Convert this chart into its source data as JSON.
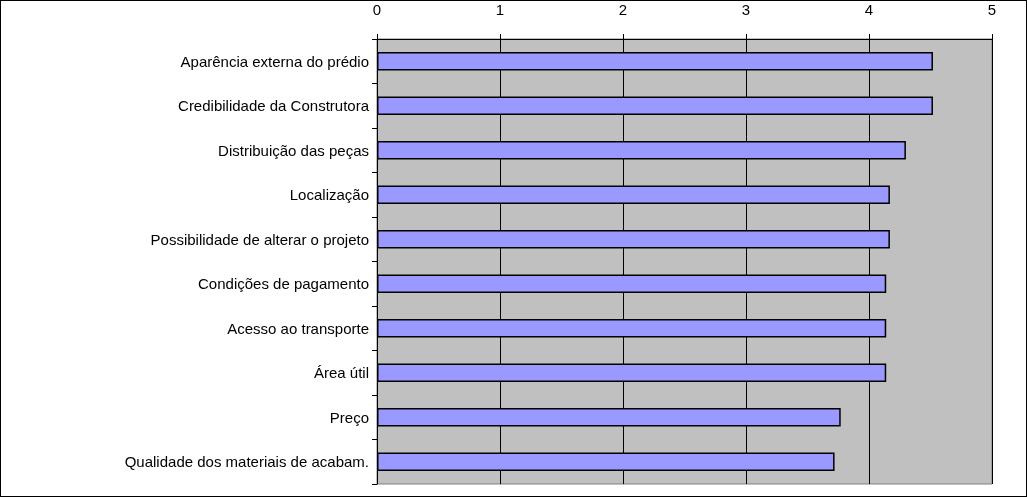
{
  "chart_data": {
    "type": "bar",
    "orientation": "horizontal",
    "categories": [
      "Aparência externa do prédio",
      "Credibilidade da Construtora",
      "Distribuição das peças",
      "Localização",
      "Possibilidade de alterar o projeto",
      "Condições de pagamento",
      "Acesso ao transporte",
      "Área útil",
      "Preço",
      "Qualidade dos materiais de acabam."
    ],
    "values": [
      4.52,
      4.52,
      4.3,
      4.17,
      4.17,
      4.14,
      4.14,
      4.14,
      3.77,
      3.72
    ],
    "color": "#9999ff",
    "xlim": [
      0,
      5
    ],
    "xticks": [
      0,
      1,
      2,
      3,
      4,
      5
    ],
    "grid": "x"
  }
}
